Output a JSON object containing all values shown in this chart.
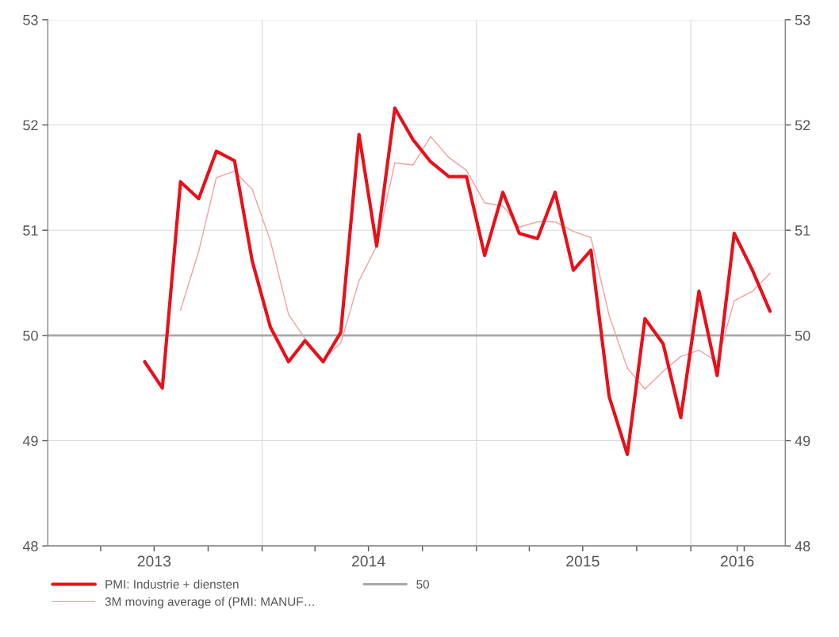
{
  "chart_data": {
    "type": "line",
    "x": [
      "2013-06-15",
      "2013-07-15",
      "2013-08-15",
      "2013-09-15",
      "2013-10-15",
      "2013-11-15",
      "2013-12-15",
      "2014-01-15",
      "2014-02-15",
      "2014-03-15",
      "2014-04-15",
      "2014-05-15",
      "2014-06-15",
      "2014-07-15",
      "2014-08-15",
      "2014-09-15",
      "2014-10-15",
      "2014-11-15",
      "2014-12-15",
      "2015-01-15",
      "2015-02-15",
      "2015-03-15",
      "2015-04-15",
      "2015-05-15",
      "2015-06-15",
      "2015-07-15",
      "2015-08-15",
      "2015-09-15",
      "2015-10-15",
      "2015-11-15",
      "2015-12-15",
      "2016-01-15",
      "2016-02-15",
      "2016-03-15",
      "2016-04-15",
      "2016-05-15"
    ],
    "series": [
      {
        "name": "PMI: Industrie + diensten",
        "color": "#e8101a",
        "values": [
          49.75,
          49.5,
          51.46,
          51.3,
          51.75,
          51.66,
          50.71,
          50.08,
          49.75,
          49.95,
          49.75,
          50.03,
          51.91,
          50.85,
          52.16,
          51.86,
          51.65,
          51.51,
          51.51,
          50.76,
          51.36,
          50.97,
          50.92,
          51.36,
          50.62,
          50.81,
          49.42,
          48.87,
          50.16,
          49.92,
          49.22,
          50.42,
          49.62,
          50.97,
          50.62,
          50.23
        ]
      },
      {
        "name": "3M moving average of (PMI: MANUF…",
        "color": "#f0a0a0",
        "x": [
          "2013-08-15",
          "2013-09-15",
          "2013-10-15",
          "2013-11-15",
          "2013-12-15",
          "2014-01-15",
          "2014-02-15",
          "2014-03-15",
          "2014-04-15",
          "2014-05-15",
          "2014-06-15",
          "2014-07-15",
          "2014-08-15",
          "2014-09-15",
          "2014-10-15",
          "2014-11-15",
          "2014-12-15",
          "2015-01-15",
          "2015-02-15",
          "2015-03-15",
          "2015-04-15",
          "2015-05-15",
          "2015-06-15",
          "2015-07-15",
          "2015-08-15",
          "2015-09-15",
          "2015-10-15",
          "2015-11-15",
          "2015-12-15",
          "2016-01-15",
          "2016-02-15",
          "2016-03-15",
          "2016-04-15",
          "2016-05-15"
        ],
        "values": [
          50.24,
          50.8,
          51.5,
          51.56,
          51.39,
          50.9,
          50.2,
          49.97,
          49.77,
          49.93,
          50.52,
          50.85,
          51.64,
          51.62,
          51.89,
          51.69,
          51.57,
          51.26,
          51.23,
          51.03,
          51.08,
          51.08,
          50.99,
          50.93,
          50.19,
          49.69,
          49.49,
          49.66,
          49.8,
          49.86,
          49.75,
          50.33,
          50.42,
          50.59
        ]
      },
      {
        "name": "50",
        "color": "#a8a8a8",
        "x": [
          "2013-01-01",
          "2016-06-10"
        ],
        "values": [
          50,
          50
        ]
      }
    ],
    "xlim": [
      "2013-01-01",
      "2016-06-10"
    ],
    "xticks": [
      {
        "value": "2013-04-01",
        "label": null
      },
      {
        "value": "2013-07-01",
        "label": "2013"
      },
      {
        "value": "2013-10-01",
        "label": null
      },
      {
        "value": "2014-01-01",
        "label": null
      },
      {
        "value": "2014-04-01",
        "label": null
      },
      {
        "value": "2014-07-01",
        "label": "2014"
      },
      {
        "value": "2014-10-01",
        "label": null
      },
      {
        "value": "2015-01-01",
        "label": null
      },
      {
        "value": "2015-04-01",
        "label": null
      },
      {
        "value": "2015-07-01",
        "label": "2015"
      },
      {
        "value": "2015-10-01",
        "label": null
      },
      {
        "value": "2016-01-01",
        "label": null
      },
      {
        "value": "2016-03-20",
        "label": "2016"
      },
      {
        "value": "2016-04-01",
        "label": null
      }
    ],
    "ylim": [
      48,
      53
    ],
    "yticks": [
      48,
      49,
      50,
      51,
      52,
      53
    ],
    "y2lim": [
      48,
      53
    ],
    "y2ticks": [
      48,
      49,
      50,
      51,
      52,
      53
    ],
    "ref_lines": [
      {
        "axis": "x",
        "value": "2014-01-01",
        "color": "#d8d8d8"
      },
      {
        "axis": "x",
        "value": "2015-01-01",
        "color": "#d8d8d8"
      },
      {
        "axis": "x",
        "value": "2016-01-01",
        "color": "#d8d8d8"
      }
    ],
    "grid": "y",
    "legend": "bottom",
    "marker": "none",
    "line_style": "solid"
  }
}
